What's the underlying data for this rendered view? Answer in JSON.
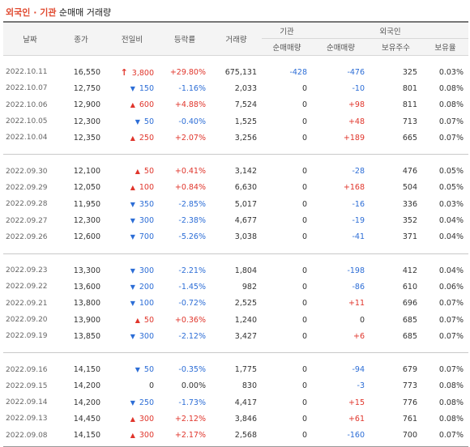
{
  "title": {
    "part1": "외국인 · 기관",
    "part2": " 순매매 거래량"
  },
  "headers": {
    "date": "날짜",
    "close": "종가",
    "change": "전일비",
    "rate": "등락률",
    "volume": "거래량",
    "institution": "기관",
    "foreigner": "외국인",
    "inst_net": "순매매량",
    "for_net": "순매매량",
    "holdings": "보유주수",
    "holding_ratio": "보유율"
  },
  "groups": [
    {
      "rows": [
        {
          "date": "2022.10.11",
          "close": "16,550",
          "dir": "limit-up",
          "change": "3,800",
          "rate": "+29.80%",
          "volume": "675,131",
          "inst": "-428",
          "foreign": "-476",
          "holdings": "325",
          "ratio": "0.03%"
        },
        {
          "date": "2022.10.07",
          "close": "12,750",
          "dir": "down",
          "change": "150",
          "rate": "-1.16%",
          "volume": "2,033",
          "inst": "0",
          "foreign": "-10",
          "holdings": "801",
          "ratio": "0.08%"
        },
        {
          "date": "2022.10.06",
          "close": "12,900",
          "dir": "up",
          "change": "600",
          "rate": "+4.88%",
          "volume": "7,524",
          "inst": "0",
          "foreign": "+98",
          "holdings": "811",
          "ratio": "0.08%"
        },
        {
          "date": "2022.10.05",
          "close": "12,300",
          "dir": "down",
          "change": "50",
          "rate": "-0.40%",
          "volume": "1,525",
          "inst": "0",
          "foreign": "+48",
          "holdings": "713",
          "ratio": "0.07%"
        },
        {
          "date": "2022.10.04",
          "close": "12,350",
          "dir": "up",
          "change": "250",
          "rate": "+2.07%",
          "volume": "3,256",
          "inst": "0",
          "foreign": "+189",
          "holdings": "665",
          "ratio": "0.07%"
        }
      ]
    },
    {
      "rows": [
        {
          "date": "2022.09.30",
          "close": "12,100",
          "dir": "up",
          "change": "50",
          "rate": "+0.41%",
          "volume": "3,142",
          "inst": "0",
          "foreign": "-28",
          "holdings": "476",
          "ratio": "0.05%"
        },
        {
          "date": "2022.09.29",
          "close": "12,050",
          "dir": "up",
          "change": "100",
          "rate": "+0.84%",
          "volume": "6,630",
          "inst": "0",
          "foreign": "+168",
          "holdings": "504",
          "ratio": "0.05%"
        },
        {
          "date": "2022.09.28",
          "close": "11,950",
          "dir": "down",
          "change": "350",
          "rate": "-2.85%",
          "volume": "5,017",
          "inst": "0",
          "foreign": "-16",
          "holdings": "336",
          "ratio": "0.03%"
        },
        {
          "date": "2022.09.27",
          "close": "12,300",
          "dir": "down",
          "change": "300",
          "rate": "-2.38%",
          "volume": "4,677",
          "inst": "0",
          "foreign": "-19",
          "holdings": "352",
          "ratio": "0.04%"
        },
        {
          "date": "2022.09.26",
          "close": "12,600",
          "dir": "down",
          "change": "700",
          "rate": "-5.26%",
          "volume": "3,038",
          "inst": "0",
          "foreign": "-41",
          "holdings": "371",
          "ratio": "0.04%"
        }
      ]
    },
    {
      "rows": [
        {
          "date": "2022.09.23",
          "close": "13,300",
          "dir": "down",
          "change": "300",
          "rate": "-2.21%",
          "volume": "1,804",
          "inst": "0",
          "foreign": "-198",
          "holdings": "412",
          "ratio": "0.04%"
        },
        {
          "date": "2022.09.22",
          "close": "13,600",
          "dir": "down",
          "change": "200",
          "rate": "-1.45%",
          "volume": "982",
          "inst": "0",
          "foreign": "-86",
          "holdings": "610",
          "ratio": "0.06%"
        },
        {
          "date": "2022.09.21",
          "close": "13,800",
          "dir": "down",
          "change": "100",
          "rate": "-0.72%",
          "volume": "2,525",
          "inst": "0",
          "foreign": "+11",
          "holdings": "696",
          "ratio": "0.07%"
        },
        {
          "date": "2022.09.20",
          "close": "13,900",
          "dir": "up",
          "change": "50",
          "rate": "+0.36%",
          "volume": "1,240",
          "inst": "0",
          "foreign": "0",
          "holdings": "685",
          "ratio": "0.07%"
        },
        {
          "date": "2022.09.19",
          "close": "13,850",
          "dir": "down",
          "change": "300",
          "rate": "-2.12%",
          "volume": "3,427",
          "inst": "0",
          "foreign": "+6",
          "holdings": "685",
          "ratio": "0.07%"
        }
      ]
    },
    {
      "rows": [
        {
          "date": "2022.09.16",
          "close": "14,150",
          "dir": "down",
          "change": "50",
          "rate": "-0.35%",
          "volume": "1,775",
          "inst": "0",
          "foreign": "-94",
          "holdings": "679",
          "ratio": "0.07%"
        },
        {
          "date": "2022.09.15",
          "close": "14,200",
          "dir": "none",
          "change": "0",
          "rate": "0.00%",
          "volume": "830",
          "inst": "0",
          "foreign": "-3",
          "holdings": "773",
          "ratio": "0.08%"
        },
        {
          "date": "2022.09.14",
          "close": "14,200",
          "dir": "down",
          "change": "250",
          "rate": "-1.73%",
          "volume": "4,417",
          "inst": "0",
          "foreign": "+15",
          "holdings": "776",
          "ratio": "0.08%"
        },
        {
          "date": "2022.09.13",
          "close": "14,450",
          "dir": "up",
          "change": "300",
          "rate": "+2.12%",
          "volume": "3,846",
          "inst": "0",
          "foreign": "+61",
          "holdings": "761",
          "ratio": "0.08%"
        },
        {
          "date": "2022.09.08",
          "close": "14,150",
          "dir": "up",
          "change": "300",
          "rate": "+2.17%",
          "volume": "2,568",
          "inst": "0",
          "foreign": "-160",
          "holdings": "700",
          "ratio": "0.07%"
        }
      ]
    }
  ],
  "colors": {
    "up": "#e0352b",
    "down": "#2c6dd6",
    "title_accent": "#e0492f"
  }
}
